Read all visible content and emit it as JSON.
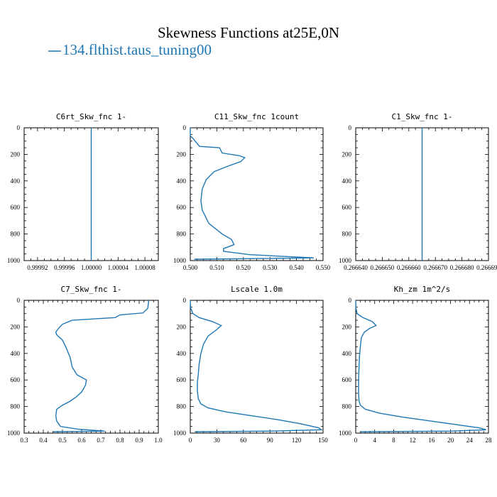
{
  "title": "Skewness Functions at25E,0N",
  "legend": {
    "label": "134.flthist.taus_tuning00",
    "color": "#1f77b4"
  },
  "chart_data": [
    {
      "type": "line",
      "title": "C6rt_Skw_fnc",
      "units": "1-",
      "xlim": [
        0.9999,
        1.0001
      ],
      "ylim": [
        0,
        1000
      ],
      "y_inverted": true,
      "xticks": [
        "0.99992",
        "0.99996",
        "1.00000",
        "1.00004",
        "1.00008"
      ],
      "xtick_values": [
        0.99992,
        0.99996,
        1.0,
        1.00004,
        1.00008
      ],
      "yticks": [
        "0",
        "200",
        "400",
        "600",
        "800",
        "1000"
      ],
      "series": [
        {
          "x": [
            1.0,
            1.0
          ],
          "y": [
            0,
            1000
          ]
        }
      ]
    },
    {
      "type": "line",
      "title": "C11_Skw_fnc",
      "units": "1count",
      "xlim": [
        0.5,
        0.55
      ],
      "ylim": [
        0,
        1000
      ],
      "y_inverted": true,
      "xticks": [
        "0.500",
        "0.510",
        "0.520",
        "0.530",
        "0.540",
        "0.550"
      ],
      "xtick_values": [
        0.5,
        0.51,
        0.52,
        0.53,
        0.54,
        0.55
      ],
      "yticks": [
        "0",
        "200",
        "400",
        "600",
        "800",
        "1000"
      ],
      "series": [
        {
          "x": [
            0.5,
            0.5,
            0.501,
            0.5035,
            0.511,
            0.512,
            0.5185,
            0.5205,
            0.519,
            0.514,
            0.509,
            0.506,
            0.5045,
            0.504,
            0.5045,
            0.507,
            0.512,
            0.5155,
            0.5165,
            0.5125,
            0.5125,
            0.522,
            0.5465,
            0.5015
          ],
          "y": [
            0,
            60,
            80,
            140,
            150,
            190,
            210,
            225,
            255,
            290,
            330,
            390,
            460,
            550,
            620,
            720,
            800,
            840,
            880,
            910,
            930,
            955,
            980,
            990
          ]
        }
      ]
    },
    {
      "type": "line",
      "title": "C1_Skw_fnc",
      "units": "1-",
      "xlim": [
        0.26664,
        0.26669
      ],
      "ylim": [
        0,
        1000
      ],
      "y_inverted": true,
      "xticks": [
        "0.266640",
        "0.266650",
        "0.266660",
        "0.266670",
        "0.266680",
        "0.266690"
      ],
      "xtick_values": [
        0.26664,
        0.26665,
        0.26666,
        0.26667,
        0.26668,
        0.26669
      ],
      "yticks": [
        "0",
        "200",
        "400",
        "600",
        "800",
        "1000"
      ],
      "series": [
        {
          "x": [
            0.266665,
            0.266665
          ],
          "y": [
            0,
            1000
          ]
        }
      ]
    },
    {
      "type": "line",
      "title": "C7_Skw_fnc",
      "units": "1-",
      "xlim": [
        0.3,
        1.0
      ],
      "ylim": [
        0,
        1000
      ],
      "y_inverted": true,
      "xticks": [
        "0.3",
        "0.4",
        "0.5",
        "0.6",
        "0.7",
        "0.8",
        "0.9",
        "1.0"
      ],
      "xtick_values": [
        0.3,
        0.4,
        0.5,
        0.6,
        0.7,
        0.8,
        0.9,
        1.0
      ],
      "yticks": [
        "0",
        "200",
        "400",
        "600",
        "800",
        "1000"
      ],
      "series": [
        {
          "x": [
            0.95,
            0.945,
            0.92,
            0.8,
            0.775,
            0.55,
            0.5,
            0.48,
            0.465,
            0.47,
            0.5,
            0.52,
            0.54,
            0.55,
            0.575,
            0.6,
            0.625,
            0.62,
            0.6,
            0.57,
            0.54,
            0.5,
            0.47,
            0.465,
            0.47,
            0.48,
            0.49,
            0.58,
            0.72,
            0.45
          ],
          "y": [
            0,
            60,
            95,
            110,
            130,
            150,
            180,
            210,
            240,
            260,
            300,
            360,
            430,
            500,
            560,
            580,
            600,
            640,
            690,
            730,
            760,
            790,
            820,
            870,
            910,
            930,
            950,
            970,
            985,
            990
          ]
        }
      ]
    },
    {
      "type": "line",
      "title": "Lscale",
      "units": "1.0m",
      "xlim": [
        0,
        150
      ],
      "ylim": [
        0,
        1000
      ],
      "y_inverted": true,
      "xticks": [
        "0",
        "30",
        "60",
        "90",
        "120",
        "150"
      ],
      "xtick_values": [
        0,
        30,
        60,
        90,
        120,
        150
      ],
      "yticks": [
        "0",
        "200",
        "400",
        "600",
        "800",
        "1000"
      ],
      "series": [
        {
          "x": [
            0,
            0.5,
            3,
            10,
            25,
            35,
            30,
            20,
            15,
            12,
            10,
            9,
            8,
            8,
            9,
            12,
            20,
            40,
            70,
            100,
            125,
            145,
            148,
            90,
            5
          ],
          "y": [
            0,
            60,
            100,
            130,
            160,
            190,
            220,
            270,
            330,
            400,
            480,
            560,
            620,
            680,
            740,
            780,
            810,
            840,
            870,
            900,
            930,
            960,
            975,
            985,
            990
          ]
        }
      ]
    },
    {
      "type": "line",
      "title": "Kh_zm",
      "units": "1m^2/s",
      "xlim": [
        0,
        28
      ],
      "ylim": [
        0,
        1000
      ],
      "y_inverted": true,
      "xticks": [
        "0",
        "4",
        "8",
        "12",
        "16",
        "20",
        "24",
        "28"
      ],
      "xtick_values": [
        0,
        4,
        8,
        12,
        16,
        20,
        24,
        28
      ],
      "yticks": [
        "0",
        "200",
        "400",
        "600",
        "800",
        "1000"
      ],
      "series": [
        {
          "x": [
            0,
            0.05,
            0.3,
            1.5,
            3.5,
            4.3,
            3.0,
            1.8,
            1.2,
            1.0,
            0.8,
            0.7,
            0.6,
            0.6,
            0.7,
            1.0,
            2.0,
            5.0,
            10,
            16,
            22,
            26,
            27.5,
            20,
            1
          ],
          "y": [
            0,
            60,
            100,
            130,
            160,
            190,
            210,
            240,
            280,
            340,
            420,
            500,
            600,
            700,
            760,
            790,
            820,
            850,
            880,
            910,
            940,
            960,
            975,
            985,
            990
          ]
        }
      ]
    }
  ]
}
